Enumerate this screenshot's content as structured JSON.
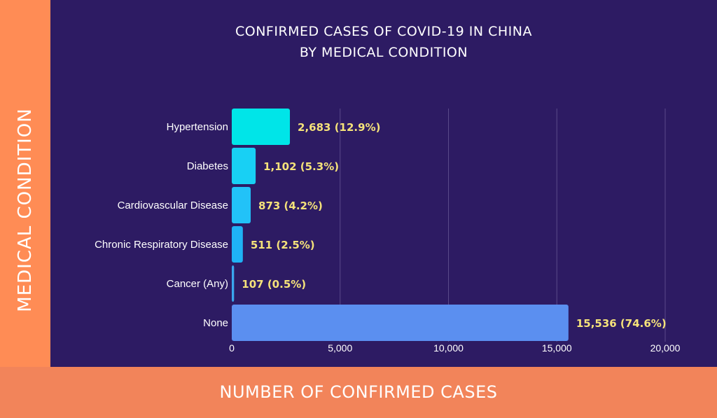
{
  "chart_data": {
    "type": "bar",
    "orientation": "horizontal",
    "title_lines": [
      "CONFIRMED CASES OF COVID-19 IN CHINA",
      "BY MEDICAL CONDITION"
    ],
    "xlabel": "NUMBER OF CONFIRMED CASES",
    "ylabel": "MEDICAL CONDITION",
    "categories": [
      "Hypertension",
      "Diabetes",
      "Cardiovascular Disease",
      "Chronic Respiratory Disease",
      "Cancer (Any)",
      "None"
    ],
    "values": [
      2683,
      1102,
      873,
      511,
      107,
      15536
    ],
    "data_labels": [
      "2,683 (12.9%)",
      "1,102 (5.3%)",
      "873 (4.2%)",
      "511 (2.5%)",
      "107 (0.5%)",
      "15,536 (74.6%)"
    ],
    "bar_colors": [
      "#00e5e8",
      "#18d0f4",
      "#22c2f8",
      "#1fb2f5",
      "#3aa6ee",
      "#5b8ff0"
    ],
    "xticks": [
      0,
      5000,
      10000,
      15000,
      20000
    ],
    "xtick_labels": [
      "0",
      "5,000",
      "10,000",
      "15,000",
      "20,000"
    ],
    "xlim": [
      0,
      20000
    ],
    "grid": "vertical",
    "colors": {
      "panel": "#2d1b63",
      "band": "#f2845a",
      "band_left": "#ff8c55",
      "data_label": "#f5e27a",
      "grid": "#5a4a8a",
      "text": "#ffffff"
    }
  }
}
